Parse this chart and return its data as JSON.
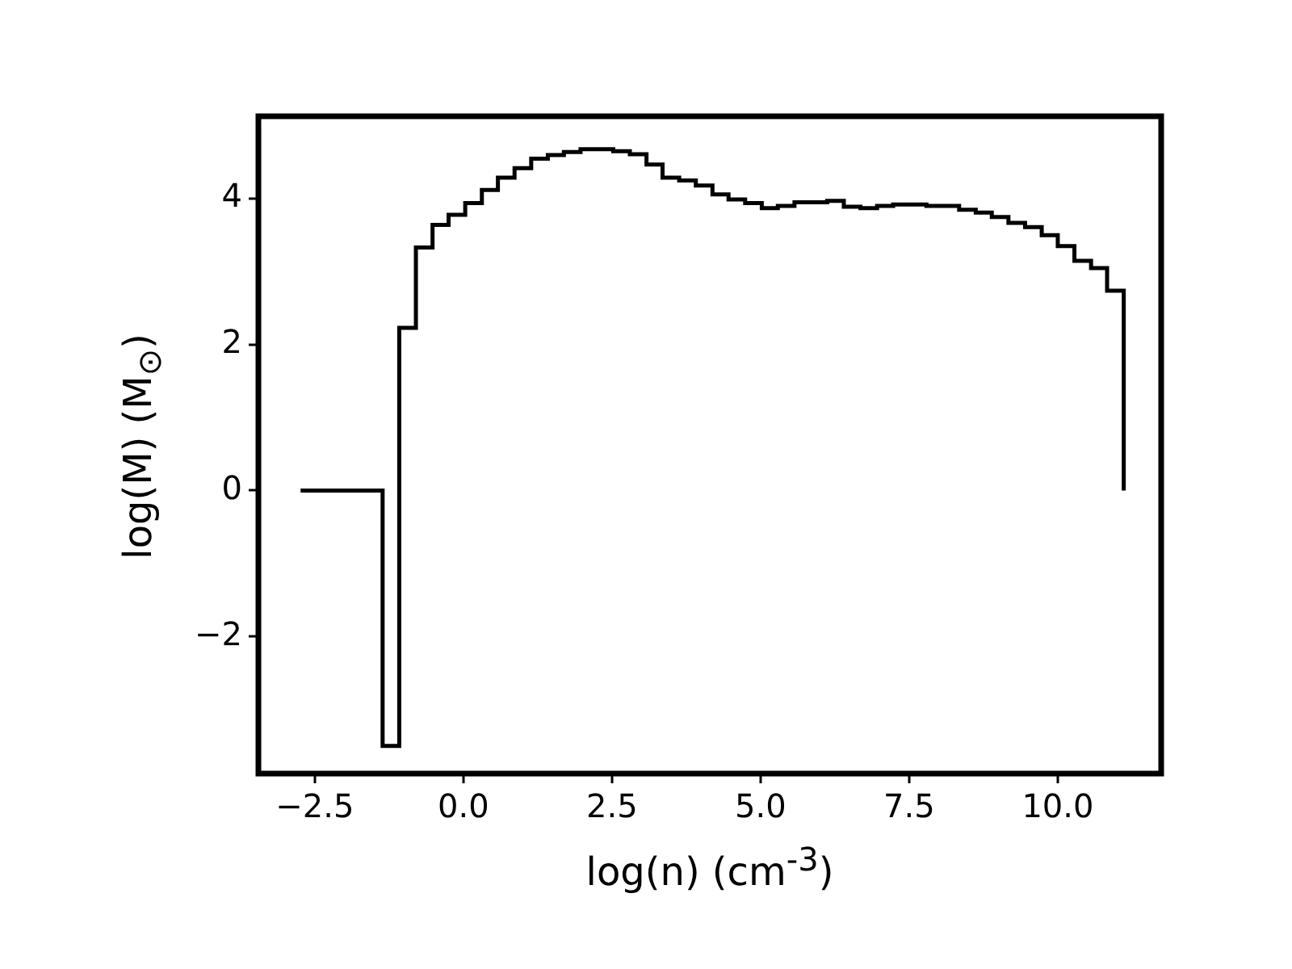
{
  "chart_data": {
    "type": "histogram",
    "xlabel": "log(n) (cm$^{-3}$)",
    "ylabel": "log(M) (M$_{⊙}$)",
    "color": "#000000",
    "bins": [
      -2.74,
      -2.46,
      -2.19,
      -1.91,
      -1.63,
      -1.36,
      -1.08,
      -0.8,
      -0.52,
      -0.25,
      0.03,
      0.31,
      0.58,
      0.86,
      1.14,
      1.42,
      1.69,
      1.97,
      2.25,
      2.52,
      2.8,
      3.08,
      3.35,
      3.63,
      3.91,
      4.19,
      4.46,
      4.74,
      5.02,
      5.29,
      5.57,
      5.85,
      6.12,
      6.4,
      6.68,
      6.96,
      7.23,
      7.51,
      7.79,
      8.06,
      8.34,
      8.62,
      8.89,
      9.17,
      9.45,
      9.73,
      10.0,
      10.28,
      10.56,
      10.83,
      11.11
    ],
    "values": [
      0,
      0,
      0,
      0,
      0,
      -3.5,
      2.23,
      3.33,
      3.64,
      3.78,
      3.94,
      4.12,
      4.29,
      4.42,
      4.55,
      4.6,
      4.64,
      4.68,
      4.68,
      4.65,
      4.61,
      4.47,
      4.29,
      4.25,
      4.18,
      4.06,
      3.99,
      3.94,
      3.87,
      3.9,
      3.95,
      3.95,
      3.97,
      3.89,
      3.87,
      3.9,
      3.92,
      3.92,
      3.9,
      3.9,
      3.85,
      3.81,
      3.75,
      3.67,
      3.61,
      3.5,
      3.35,
      3.15,
      3.05,
      2.74
    ],
    "xlim": [
      -3.45,
      11.74
    ],
    "xticks": [
      {
        "value": -2.5,
        "label": "−2.5"
      },
      {
        "value": 0,
        "label": "0.0"
      },
      2.5,
      {
        "value": 5,
        "label": "5.0"
      },
      7.5,
      {
        "value": 10,
        "label": "10.0"
      }
    ],
    "ylim": [
      -3.88,
      5.13
    ],
    "yticks": [
      {
        "value": -2,
        "label": "−2"
      },
      0,
      2,
      4
    ]
  }
}
